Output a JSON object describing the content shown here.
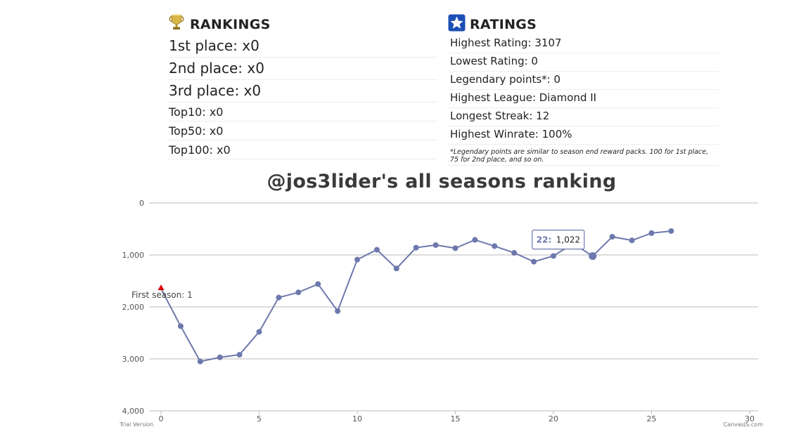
{
  "rankings": {
    "title": "RANKINGS",
    "icon": "trophy-icon",
    "rows": [
      {
        "label": "1st place: x0",
        "size": "big"
      },
      {
        "label": "2nd place: x0",
        "size": "big"
      },
      {
        "label": "3rd place: x0",
        "size": "big"
      },
      {
        "label": "Top10: x0",
        "size": "small"
      },
      {
        "label": "Top50: x0",
        "size": "small"
      },
      {
        "label": "Top100: x0",
        "size": "small"
      }
    ]
  },
  "ratings": {
    "title": "RATINGS",
    "icon": "star-icon",
    "rows": [
      "Highest Rating: 3107",
      "Lowest Rating: 0",
      "Legendary points*: 0",
      "Highest League: Diamond II",
      "Longest Streak: 12",
      "Highest Winrate: 100%"
    ],
    "note": "*Legendary points are similar to season end reward packs. 100 for 1st place, 75 for 2nd place, and so on."
  },
  "chart_title": "@jos3lider's all seasons ranking",
  "colors": {
    "series": "#6d78ad",
    "marker": "#e00000",
    "grid": "#bbbbbb",
    "trophy": "#c9a13b",
    "star_badge": "#1d4fb5"
  },
  "chart_data": {
    "type": "line",
    "title": "@jos3lider's all seasons ranking",
    "y_reversed": true,
    "ylim": [
      0,
      4000
    ],
    "xlim": [
      0,
      30
    ],
    "y_ticks": [
      "0",
      "1,000",
      "2,000",
      "3,000",
      "4,000"
    ],
    "y_tick_values": [
      0,
      1000,
      2000,
      3000,
      4000
    ],
    "x_ticks": [
      "0",
      "5",
      "10",
      "15",
      "20",
      "25",
      "30"
    ],
    "x_tick_values": [
      0,
      5,
      10,
      15,
      20,
      25,
      30
    ],
    "grid": true,
    "series": [
      {
        "x": [
          0,
          1,
          2,
          3,
          4,
          5,
          6,
          7,
          8,
          9,
          10,
          11,
          12,
          13,
          14,
          15,
          16,
          17,
          18,
          19,
          20,
          21,
          22,
          23,
          24,
          25,
          26
        ],
        "values": [
          1650,
          2370,
          3050,
          2970,
          2920,
          2480,
          1820,
          1720,
          1560,
          2080,
          1090,
          900,
          1260,
          860,
          810,
          870,
          710,
          830,
          960,
          1130,
          1020,
          780,
          1022,
          650,
          720,
          580,
          540
        ]
      }
    ],
    "annotation": {
      "label": "First season: 1",
      "x": 0
    },
    "tooltip": {
      "x_label": "22:",
      "value": "1,022",
      "x": 22
    },
    "watermark_left": "Trial Version",
    "watermark_right": "CanvasJS.com"
  }
}
